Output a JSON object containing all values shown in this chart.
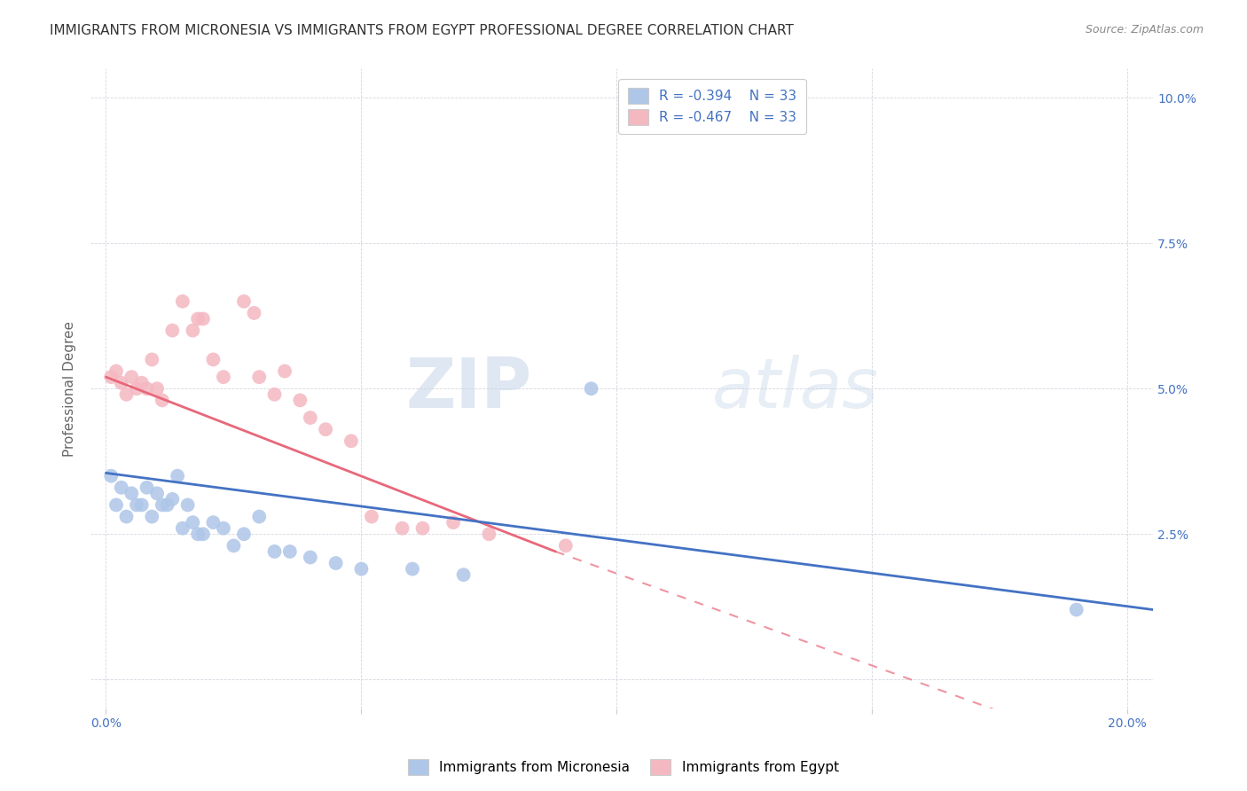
{
  "title": "IMMIGRANTS FROM MICRONESIA VS IMMIGRANTS FROM EGYPT PROFESSIONAL DEGREE CORRELATION CHART",
  "source": "Source: ZipAtlas.com",
  "ylabel": "Professional Degree",
  "x_ticks": [
    0.0,
    0.05,
    0.1,
    0.15,
    0.2
  ],
  "x_tick_labels": [
    "0.0%",
    "",
    "",
    "",
    "20.0%"
  ],
  "y_ticks": [
    0.0,
    0.025,
    0.05,
    0.075,
    0.1
  ],
  "y_tick_labels_right": [
    "",
    "2.5%",
    "5.0%",
    "7.5%",
    "10.0%"
  ],
  "legend_entries": [
    {
      "label": "Immigrants from Micronesia",
      "color": "#aec6e8",
      "R": "-0.394",
      "N": "33"
    },
    {
      "label": "Immigrants from Egypt",
      "color": "#f4b8c1",
      "R": "-0.467",
      "N": "33"
    }
  ],
  "micronesia_x": [
    0.001,
    0.002,
    0.003,
    0.004,
    0.005,
    0.006,
    0.007,
    0.008,
    0.009,
    0.01,
    0.011,
    0.012,
    0.013,
    0.014,
    0.015,
    0.016,
    0.017,
    0.018,
    0.019,
    0.021,
    0.023,
    0.025,
    0.027,
    0.03,
    0.033,
    0.036,
    0.04,
    0.045,
    0.05,
    0.06,
    0.07,
    0.095,
    0.19
  ],
  "micronesia_y": [
    0.035,
    0.03,
    0.033,
    0.028,
    0.032,
    0.03,
    0.03,
    0.033,
    0.028,
    0.032,
    0.03,
    0.03,
    0.031,
    0.035,
    0.026,
    0.03,
    0.027,
    0.025,
    0.025,
    0.027,
    0.026,
    0.023,
    0.025,
    0.028,
    0.022,
    0.022,
    0.021,
    0.02,
    0.019,
    0.019,
    0.018,
    0.05,
    0.012
  ],
  "egypt_x": [
    0.001,
    0.002,
    0.003,
    0.004,
    0.005,
    0.006,
    0.007,
    0.008,
    0.009,
    0.01,
    0.011,
    0.013,
    0.015,
    0.017,
    0.018,
    0.019,
    0.021,
    0.023,
    0.027,
    0.029,
    0.03,
    0.033,
    0.035,
    0.038,
    0.04,
    0.043,
    0.048,
    0.052,
    0.058,
    0.062,
    0.068,
    0.075,
    0.09
  ],
  "egypt_y": [
    0.052,
    0.053,
    0.051,
    0.049,
    0.052,
    0.05,
    0.051,
    0.05,
    0.055,
    0.05,
    0.048,
    0.06,
    0.065,
    0.06,
    0.062,
    0.062,
    0.055,
    0.052,
    0.065,
    0.063,
    0.052,
    0.049,
    0.053,
    0.048,
    0.045,
    0.043,
    0.041,
    0.028,
    0.026,
    0.026,
    0.027,
    0.025,
    0.023
  ],
  "micronesia_color": "#aec6e8",
  "egypt_color": "#f4b8c1",
  "micronesia_line_color": "#4472c4",
  "egypt_line_color": "#e8687a",
  "background_color": "#ffffff",
  "grid_color": "#d5d5e0",
  "watermark_zip": "ZIP",
  "watermark_atlas": "atlas",
  "title_fontsize": 11,
  "axis_label_color": "#4472c4",
  "scatter_size": 130
}
